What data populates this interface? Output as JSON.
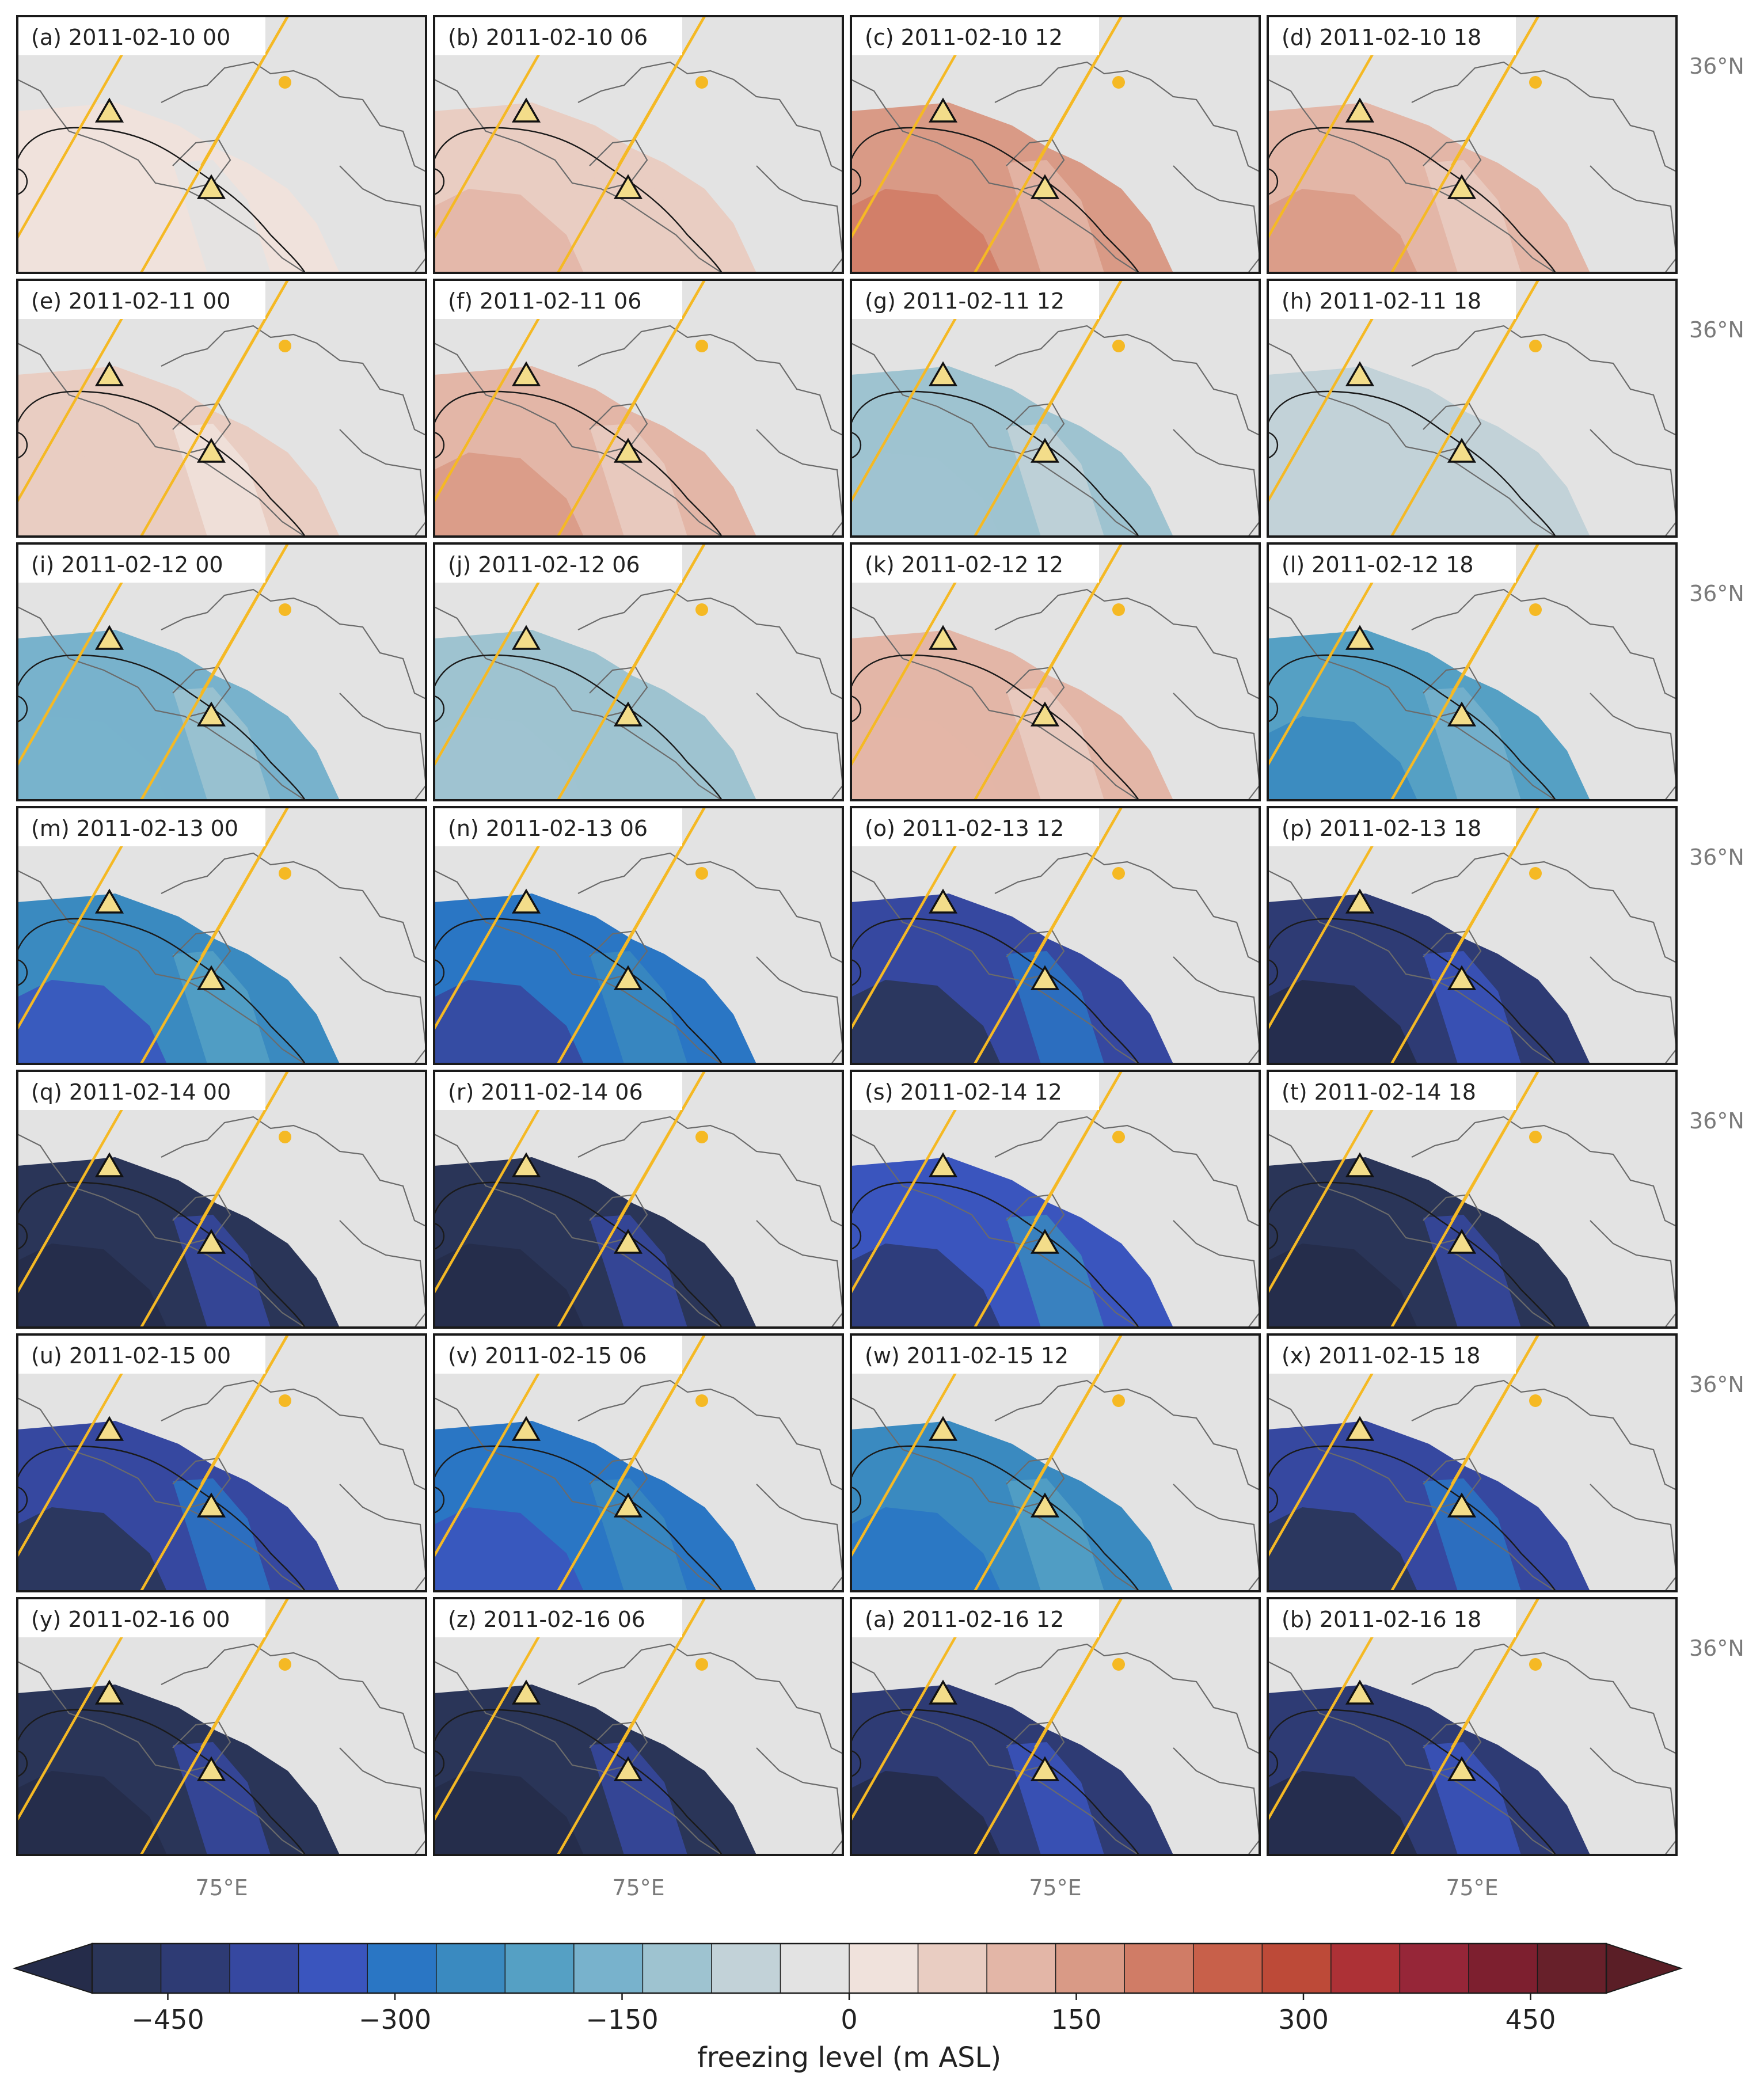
{
  "chart_data": {
    "type": "heatmap",
    "panels": [
      {
        "label": "(a) 2011-02-10 00",
        "anomaly": 60
      },
      {
        "label": "(b) 2011-02-10 06",
        "anomaly": 140
      },
      {
        "label": "(c) 2011-02-10 12",
        "anomaly": 200
      },
      {
        "label": "(d) 2011-02-10 18",
        "anomaly": 160
      },
      {
        "label": "(e) 2011-02-11 00",
        "anomaly": 100
      },
      {
        "label": "(f) 2011-02-11 06",
        "anomaly": 180
      },
      {
        "label": "(g) 2011-02-11 12",
        "anomaly": -60
      },
      {
        "label": "(h) 2011-02-11 18",
        "anomaly": -40
      },
      {
        "label": "(i) 2011-02-12 00",
        "anomaly": -120
      },
      {
        "label": "(j) 2011-02-12 06",
        "anomaly": -80
      },
      {
        "label": "(k) 2011-02-12 12",
        "anomaly": 150
      },
      {
        "label": "(l) 2011-02-12 18",
        "anomaly": -180
      },
      {
        "label": "(m) 2011-02-13 00",
        "anomaly": -250
      },
      {
        "label": "(n) 2011-02-13 06",
        "anomaly": -300
      },
      {
        "label": "(o) 2011-02-13 12",
        "anomaly": -380
      },
      {
        "label": "(p) 2011-02-13 18",
        "anomaly": -420
      },
      {
        "label": "(q) 2011-02-14 00",
        "anomaly": -470
      },
      {
        "label": "(r) 2011-02-14 06",
        "anomaly": -480
      },
      {
        "label": "(s) 2011-02-14 12",
        "anomaly": -330
      },
      {
        "label": "(t) 2011-02-14 18",
        "anomaly": -470
      },
      {
        "label": "(u) 2011-02-15 00",
        "anomaly": -400
      },
      {
        "label": "(v) 2011-02-15 06",
        "anomaly": -280
      },
      {
        "label": "(w) 2011-02-15 12",
        "anomaly": -230
      },
      {
        "label": "(x) 2011-02-15 18",
        "anomaly": -380
      },
      {
        "label": "(y) 2011-02-16 00",
        "anomaly": -490
      },
      {
        "label": "(z) 2011-02-16 06",
        "anomaly": -490
      },
      {
        "label": "(a) 2011-02-16 12",
        "anomaly": -440
      },
      {
        "label": "(b) 2011-02-16 18",
        "anomaly": -450
      }
    ],
    "lat_label": "36°N",
    "lon_label": "75°E",
    "colorbar": {
      "label": "freezing level (m ASL)",
      "ticks": [
        "−450",
        "−300",
        "−150",
        "0",
        "150",
        "300",
        "450"
      ],
      "tick_values": [
        -450,
        -300,
        -150,
        0,
        150,
        300,
        450
      ],
      "range": [
        -500,
        500
      ],
      "step": 50,
      "extend": "both",
      "colors": [
        "#2a3558",
        "#2e3b74",
        "#3648a0",
        "#3a55be",
        "#2a76c4",
        "#3a8ac0",
        "#55a0c4",
        "#78b2cc",
        "#9ec3d0",
        "#c2d2d8",
        "#e3e3e3",
        "#f0e2dc",
        "#e9cdc2",
        "#e3b6a7",
        "#d99a86",
        "#d07c66",
        "#c8604a",
        "#bd4a38",
        "#ad3136",
        "#962638",
        "#7d1f2f",
        "#67202a"
      ],
      "under_color": "#252c4a",
      "over_color": "#5a1e26"
    }
  }
}
